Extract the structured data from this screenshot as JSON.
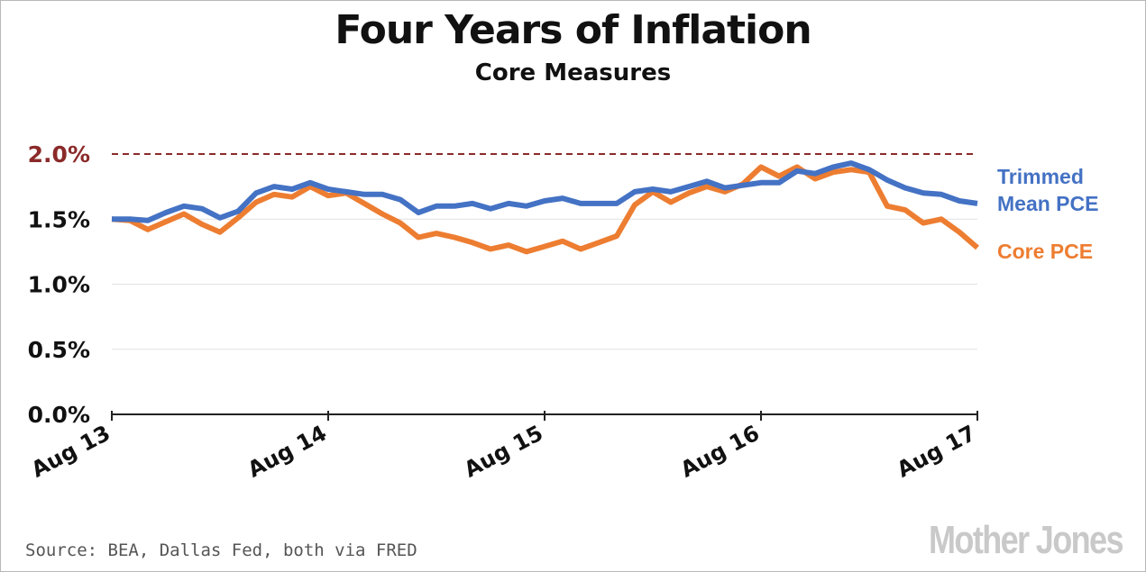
{
  "chart_data": {
    "type": "line",
    "title": "Four Years of Inflation",
    "subtitle": "Core Measures",
    "ylim": [
      0,
      2.0
    ],
    "yticks": [
      {
        "value": 0.0,
        "label": "0.0%"
      },
      {
        "value": 0.5,
        "label": "0.5%"
      },
      {
        "value": 1.0,
        "label": "1.0%"
      },
      {
        "value": 1.5,
        "label": "1.5%"
      },
      {
        "value": 2.0,
        "label": "2.0%"
      }
    ],
    "xticks": [
      {
        "index": 0,
        "label": "Aug 13"
      },
      {
        "index": 12,
        "label": "Aug 14"
      },
      {
        "index": 24,
        "label": "Aug 15"
      },
      {
        "index": 36,
        "label": "Aug 16"
      },
      {
        "index": 48,
        "label": "Aug 17"
      }
    ],
    "x": [
      "Aug 13",
      "Sep 13",
      "Oct 13",
      "Nov 13",
      "Dec 13",
      "Jan 14",
      "Feb 14",
      "Mar 14",
      "Apr 14",
      "May 14",
      "Jun 14",
      "Jul 14",
      "Aug 14",
      "Sep 14",
      "Oct 14",
      "Nov 14",
      "Dec 14",
      "Jan 15",
      "Feb 15",
      "Mar 15",
      "Apr 15",
      "May 15",
      "Jun 15",
      "Jul 15",
      "Aug 15",
      "Sep 15",
      "Oct 15",
      "Nov 15",
      "Dec 15",
      "Jan 16",
      "Feb 16",
      "Mar 16",
      "Apr 16",
      "May 16",
      "Jun 16",
      "Jul 16",
      "Aug 16",
      "Sep 16",
      "Oct 16",
      "Nov 16",
      "Dec 16",
      "Jan 17",
      "Feb 17",
      "Mar 17",
      "Apr 17",
      "May 17",
      "Jun 17",
      "Jul 17",
      "Aug 17"
    ],
    "reference_line": {
      "value": 2.0,
      "color": "#8b2a2a",
      "style": "dashed"
    },
    "series": [
      {
        "name": "Trimmed Mean PCE",
        "label_lines": [
          "Trimmed",
          "Mean PCE"
        ],
        "color": "#4472c4",
        "values": [
          1.5,
          1.5,
          1.49,
          1.55,
          1.6,
          1.58,
          1.51,
          1.56,
          1.7,
          1.75,
          1.73,
          1.78,
          1.73,
          1.71,
          1.69,
          1.69,
          1.65,
          1.55,
          1.6,
          1.6,
          1.62,
          1.58,
          1.62,
          1.6,
          1.64,
          1.66,
          1.62,
          1.62,
          1.62,
          1.71,
          1.73,
          1.71,
          1.75,
          1.79,
          1.74,
          1.76,
          1.78,
          1.78,
          1.87,
          1.85,
          1.9,
          1.93,
          1.88,
          1.8,
          1.74,
          1.7,
          1.69,
          1.64,
          1.62
        ]
      },
      {
        "name": "Core PCE",
        "label_lines": [
          "Core PCE"
        ],
        "color": "#ed7d31",
        "values": [
          1.5,
          1.49,
          1.42,
          1.48,
          1.54,
          1.46,
          1.4,
          1.51,
          1.63,
          1.69,
          1.67,
          1.75,
          1.68,
          1.7,
          1.62,
          1.54,
          1.47,
          1.36,
          1.39,
          1.36,
          1.32,
          1.27,
          1.3,
          1.25,
          1.29,
          1.33,
          1.27,
          1.32,
          1.37,
          1.61,
          1.71,
          1.63,
          1.7,
          1.75,
          1.71,
          1.77,
          1.9,
          1.83,
          1.9,
          1.81,
          1.86,
          1.88,
          1.86,
          1.6,
          1.57,
          1.47,
          1.5,
          1.4,
          1.28
        ]
      }
    ]
  },
  "source": "Source: BEA, Dallas Fed, both via FRED",
  "brand": "Mother Jones"
}
